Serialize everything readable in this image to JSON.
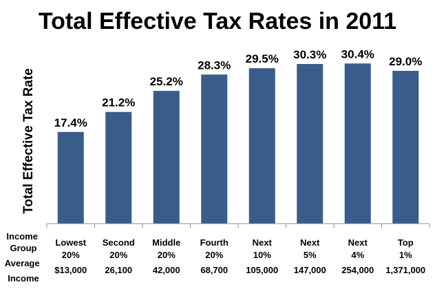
{
  "chart_data": {
    "type": "bar",
    "title": "Total Effective Tax Rates in 2011",
    "xlabel": "",
    "ylabel": "Total Effective Tax Rate",
    "ylim": [
      0,
      32
    ],
    "grid": false,
    "bar_color": "#385d8a",
    "row_labels": {
      "group": "Income Group",
      "income": "Average Income"
    },
    "categories": [
      "Lowest 20%",
      "Second 20%",
      "Middle 20%",
      "Fourth 20%",
      "Next 10%",
      "Next 5%",
      "Next 4%",
      "Top 1%"
    ],
    "category_lines": [
      [
        "Lowest",
        "20%",
        "$13,000"
      ],
      [
        "Second",
        "20%",
        "26,100"
      ],
      [
        "Middle",
        "20%",
        "42,000"
      ],
      [
        "Fourth",
        "20%",
        "68,700"
      ],
      [
        "Next",
        "10%",
        "105,000"
      ],
      [
        "Next",
        "5%",
        "147,000"
      ],
      [
        "Next",
        "4%",
        "254,000"
      ],
      [
        "Top",
        "1%",
        "1,371,000"
      ]
    ],
    "values": [
      17.4,
      21.2,
      25.2,
      28.3,
      29.5,
      30.3,
      30.4,
      29.0
    ],
    "data_labels": [
      "17.4%",
      "21.2%",
      "25.2%",
      "28.3%",
      "29.5%",
      "30.3%",
      "30.4%",
      "29.0%"
    ]
  }
}
